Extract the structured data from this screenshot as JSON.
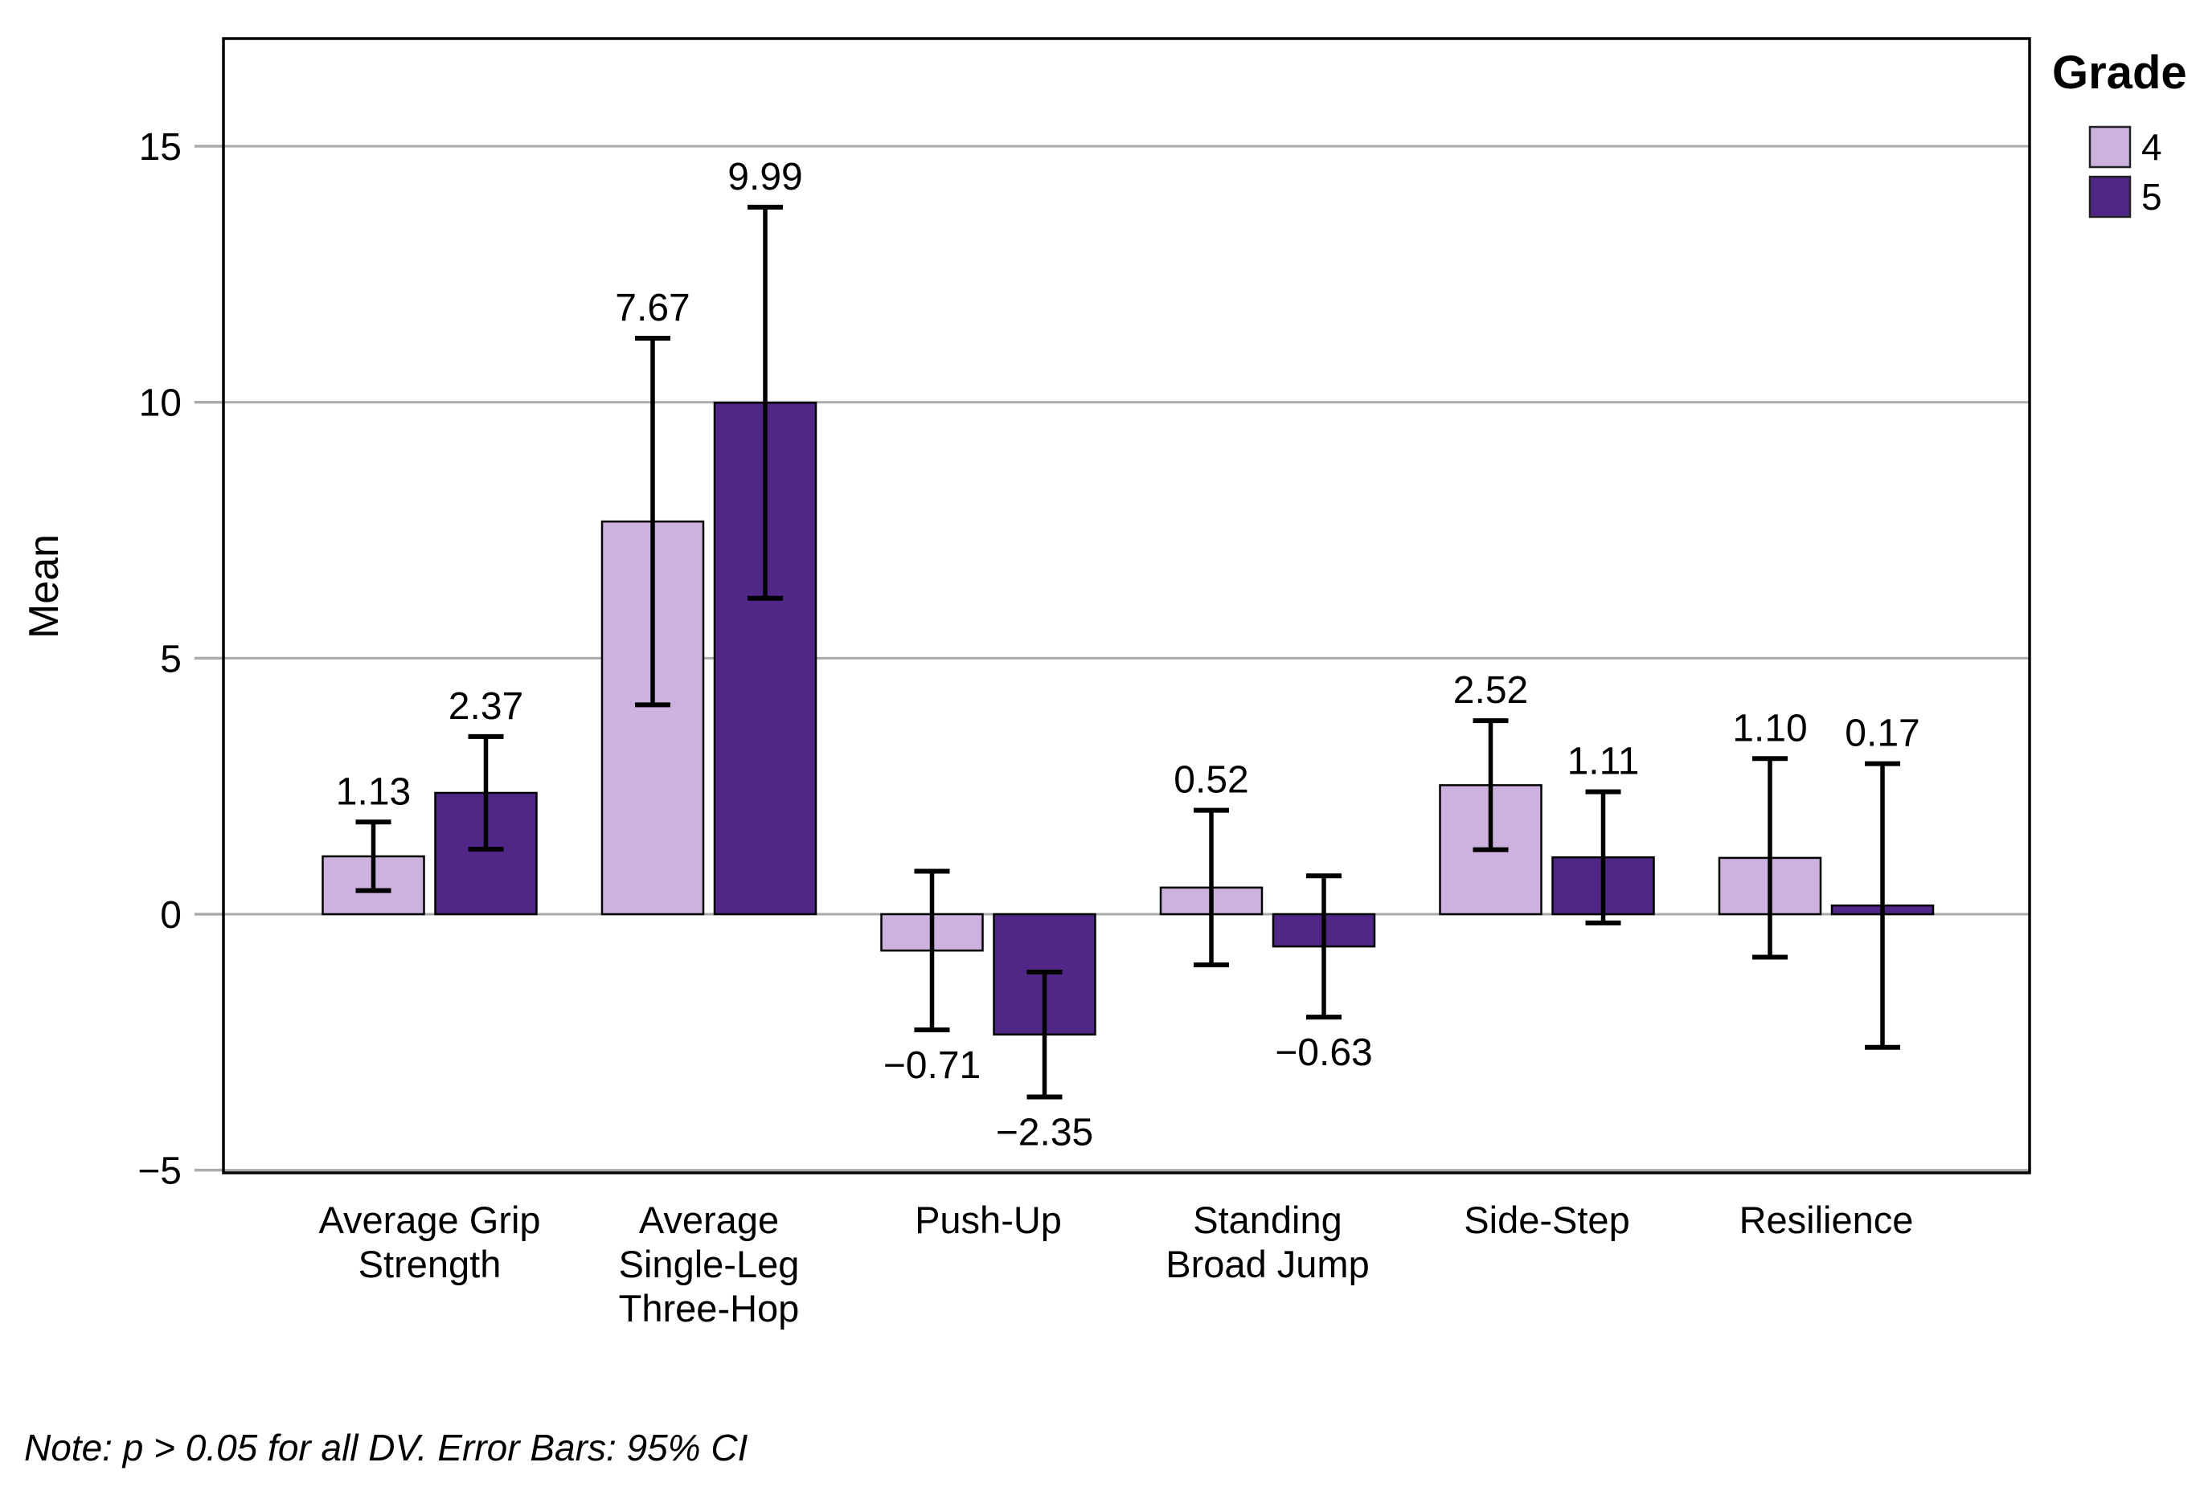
{
  "chart_data": {
    "type": "bar",
    "title": "",
    "xlabel": "",
    "ylabel": "Mean",
    "ylim": [
      -5.05,
      17.1
    ],
    "yticks": [
      15,
      10,
      5,
      0,
      -5
    ],
    "ytick_labels": [
      "15",
      "10",
      "5",
      "0",
      "−5"
    ],
    "grid": true,
    "legend_title": "Grade",
    "legend_position": "top-right-outside",
    "error_bar_meaning": "95% CI",
    "categories": [
      "Average Grip\nStrength",
      "Average\nSingle-Leg\nThree-Hop",
      "Push-Up",
      "Standing\nBroad Jump",
      "Side-Step",
      "Resilience"
    ],
    "series": [
      {
        "name": "4",
        "color": "#CDB1DF",
        "values": [
          1.13,
          7.67,
          -0.71,
          0.52,
          2.52,
          1.1
        ],
        "value_labels": [
          "1.13",
          "7.67",
          "−0.71",
          "0.52",
          "2.52",
          "1.10"
        ],
        "ci_low": [
          0.46,
          4.09,
          -2.26,
          -0.99,
          1.26,
          -0.84
        ],
        "ci_high": [
          1.8,
          11.25,
          0.84,
          2.03,
          3.78,
          3.04
        ]
      },
      {
        "name": "5",
        "color": "#502687",
        "values": [
          2.37,
          9.99,
          -2.35,
          -0.63,
          1.11,
          0.17
        ],
        "value_labels": [
          "2.37",
          "9.99",
          "−2.35",
          "−0.63",
          "1.11",
          "0.17"
        ],
        "ci_low": [
          1.27,
          6.17,
          -3.57,
          -2.01,
          -0.17,
          -2.6
        ],
        "ci_high": [
          3.47,
          13.81,
          -1.13,
          0.75,
          2.39,
          2.94
        ]
      }
    ],
    "note": "Note: p > 0.05 for all DV. Error Bars: 95% CI",
    "colors": {
      "grade4_fill": "#CDB1DF",
      "grade5_fill": "#502687",
      "gridline": "#ABABAB",
      "frame": "#000000",
      "bar_outline": "#000000",
      "error_bar": "#000000"
    }
  }
}
